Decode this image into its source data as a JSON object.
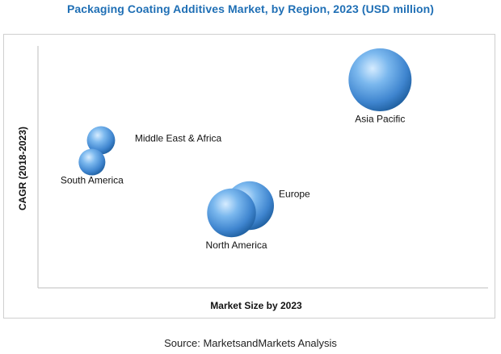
{
  "title": "Packaging Coating Additives Market, by Region, 2023 (USD million)",
  "source": "Source: MarketsandMarkets Analysis",
  "colors": {
    "title": "#1f6fb5",
    "bubble": "#4a90d9"
  },
  "chart_data": {
    "type": "bubble",
    "title": "Packaging Coating Additives Market, by Region, 2023 (USD million)",
    "xlabel": "Market Size by 2023",
    "ylabel": "CAGR (2018-2023)",
    "xlim": [
      0,
      100
    ],
    "ylim": [
      0,
      100
    ],
    "grid": false,
    "legend": "none",
    "points": [
      {
        "label": "Asia Pacific",
        "x": 76,
        "y": 86,
        "size": 100
      },
      {
        "label": "Middle East & Africa",
        "x": 14,
        "y": 61,
        "size": 20
      },
      {
        "label": "South America",
        "x": 12,
        "y": 52,
        "size": 18
      },
      {
        "label": "Europe",
        "x": 47,
        "y": 34,
        "size": 60
      },
      {
        "label": "North America",
        "x": 43,
        "y": 31,
        "size": 60
      }
    ]
  }
}
